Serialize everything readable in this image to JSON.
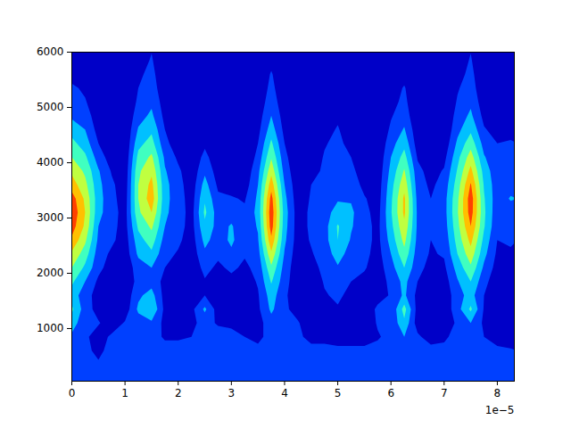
{
  "chart_data": {
    "type": "contour",
    "annotations": [
      "1e−5"
    ],
    "xlim": [
      0,
      8.32e-05
    ],
    "ylim": [
      48,
      6000
    ],
    "xticks": [
      0,
      {
        "value": 1e-05,
        "label": "1"
      },
      {
        "value": 2e-05,
        "label": "2"
      },
      {
        "value": 3e-05,
        "label": "3"
      },
      {
        "value": 4e-05,
        "label": "4"
      },
      {
        "value": 5e-05,
        "label": "5"
      },
      {
        "value": 6e-05,
        "label": "6"
      },
      {
        "value": 7e-05,
        "label": "7"
      },
      {
        "value": 8e-05,
        "label": "8"
      }
    ],
    "yticks": [
      1000,
      2000,
      3000,
      4000,
      5000,
      6000
    ],
    "levels": [
      0,
      1,
      2,
      3,
      4,
      5,
      6,
      7
    ],
    "colors": [
      "#0000c8",
      "#0040ff",
      "#00c0ff",
      "#40ffc0",
      "#c0ff40",
      "#ffc000",
      "#ff4000",
      "#c80000"
    ],
    "x": [
      0,
      2.5e-06,
      5e-06,
      7.5e-06,
      1e-05,
      1.25e-05,
      1.5e-05,
      1.75e-05,
      2e-05,
      2.25e-05,
      2.5e-05,
      2.75e-05,
      3e-05,
      3.25e-05,
      3.5e-05,
      3.75e-05,
      4e-05,
      4.25e-05,
      4.5e-05,
      4.75e-05,
      5e-05,
      5.25e-05,
      5.5e-05,
      5.75e-05,
      6e-05,
      6.25e-05,
      6.5e-05,
      6.75e-05,
      7e-05,
      7.25e-05,
      7.5e-05,
      7.75e-05,
      8e-05,
      8.25e-05
    ],
    "y": [
      100,
      350,
      600,
      850,
      1100,
      1350,
      1600,
      1850,
      2100,
      2350,
      2600,
      2850,
      3100,
      3350,
      3600,
      3850,
      4100,
      4350,
      4600,
      4850,
      5100,
      5350,
      5600,
      5850
    ],
    "z": [
      [
        1.5,
        1.1,
        1.5,
        1.8,
        2.5,
        3.2,
        2.5,
        3.2,
        4,
        4.8,
        5.8,
        6.5,
        6.8,
        6.5,
        5.5,
        4.8,
        4,
        3.3,
        2.6,
        1.8,
        1.4,
        1.2,
        0.6,
        0.3
      ],
      [
        1.5,
        1.1,
        1.2,
        1.2,
        1.3,
        1.5,
        1.5,
        2,
        2.8,
        3.5,
        4.2,
        4.8,
        5,
        4.8,
        4.3,
        3.8,
        3.2,
        2.5,
        2,
        1.5,
        1.1,
        0.8,
        0.3,
        0.2
      ],
      [
        1.5,
        1.1,
        0.8,
        0.5,
        1.1,
        0.6,
        0.5,
        0.8,
        1.3,
        1.5,
        1.8,
        2,
        2.3,
        2.4,
        2.3,
        2.1,
        1.5,
        1,
        0.6,
        0.4,
        0.2,
        0.1,
        0,
        0
      ],
      [
        1.5,
        1.1,
        1.3,
        1.2,
        0.4,
        0.3,
        0.3,
        0.3,
        0.5,
        0.8,
        1.2,
        1.3,
        1.4,
        1.3,
        1.2,
        0.9,
        0.5,
        0.3,
        0.2,
        0.1,
        0,
        0,
        0,
        0
      ],
      [
        1.5,
        1.1,
        1.3,
        1.4,
        1.1,
        0.4,
        0.3,
        0.3,
        0.3,
        0.4,
        0.5,
        0.6,
        0.6,
        0.5,
        0.4,
        0.3,
        0.2,
        0.1,
        0.1,
        0,
        0,
        0,
        0,
        0
      ],
      [
        1.5,
        1.1,
        1.2,
        1.2,
        1.5,
        2.2,
        1.8,
        1.3,
        1.5,
        2.2,
        2.6,
        3.2,
        3.8,
        4,
        4,
        3.8,
        3.3,
        2.7,
        2.1,
        1.6,
        1.2,
        1,
        0.8,
        0.5
      ],
      [
        1.5,
        1.1,
        1.3,
        1.3,
        1.8,
        3,
        2.4,
        1.6,
        2,
        2.8,
        3.5,
        4.2,
        5,
        5.6,
        5.3,
        4.8,
        4.2,
        3.4,
        2.8,
        2.2,
        1.8,
        1.5,
        1.3,
        1.1
      ],
      [
        1.5,
        1.1,
        1.3,
        0.9,
        0.7,
        0.7,
        0.6,
        0.7,
        1,
        1.3,
        1.6,
        2,
        2.2,
        2.3,
        2.3,
        2.1,
        1.8,
        1.3,
        1,
        0.7,
        0.5,
        0.3,
        0.2,
        0.1
      ],
      [
        1.5,
        1.1,
        1.3,
        0.9,
        0.3,
        0.2,
        0.2,
        0.3,
        0.6,
        0.9,
        1.2,
        1.4,
        1.5,
        1.5,
        1.4,
        1.2,
        0.8,
        0.4,
        0.2,
        0.1,
        0,
        0,
        0,
        0
      ],
      [
        1.5,
        1.1,
        1.4,
        1,
        0.8,
        0.7,
        0.3,
        0.2,
        0.3,
        0.4,
        0.5,
        0.6,
        0.6,
        0.5,
        0.4,
        0.3,
        0.2,
        0.1,
        0,
        0,
        0,
        0,
        0,
        0
      ],
      [
        1.5,
        1.1,
        1.5,
        1.2,
        1.3,
        2.2,
        1,
        0.9,
        1.3,
        1.8,
        2.3,
        2.8,
        3.2,
        2.9,
        2.4,
        1.8,
        1.3,
        0.8,
        0.4,
        0.2,
        0.1,
        0,
        0,
        0
      ],
      [
        1.5,
        1.1,
        1.5,
        1.4,
        0.9,
        0.5,
        0.4,
        0.5,
        0.8,
        1.2,
        1.5,
        1.6,
        1.5,
        1.2,
        0.8,
        0.5,
        0.3,
        0.1,
        0,
        0,
        0,
        0,
        0,
        0
      ],
      [
        1.5,
        1.1,
        1.5,
        1.3,
        0.8,
        0.5,
        0.4,
        0.7,
        1.2,
        1.8,
        2.2,
        2.1,
        1.6,
        1.1,
        0.6,
        0.3,
        0.1,
        0,
        0,
        0,
        0,
        0,
        0,
        0
      ],
      [
        1.5,
        1.1,
        1.4,
        1,
        0.4,
        0.3,
        0.3,
        0.5,
        0.8,
        1.1,
        1.3,
        1.3,
        1.2,
        0.9,
        0.5,
        0.3,
        0.1,
        0,
        0,
        0,
        0,
        0,
        0,
        0
      ],
      [
        1.5,
        1.1,
        1.2,
        0.8,
        0.6,
        0.8,
        0.9,
        1.1,
        1.3,
        1.6,
        1.9,
        2.1,
        2.3,
        2.2,
        2,
        1.7,
        1.3,
        1,
        0.7,
        0.5,
        0.3,
        0.2,
        0.1,
        0
      ],
      [
        1.5,
        1.1,
        1.2,
        1.3,
        1.6,
        2.2,
        2.5,
        3.1,
        3.8,
        4.8,
        5.8,
        6.5,
        6.7,
        6.4,
        5.6,
        4.7,
        3.9,
        3.2,
        2.5,
        2,
        1.6,
        1.3,
        1.1,
        0.7
      ],
      [
        1.5,
        1.1,
        1.2,
        1,
        1.1,
        1.2,
        1.2,
        1.4,
        1.6,
        1.9,
        2.2,
        2.4,
        2.5,
        2.3,
        2,
        1.6,
        1.3,
        1,
        0.7,
        0.5,
        0.3,
        0.2,
        0.1,
        0
      ],
      [
        1.5,
        1.1,
        1.2,
        1.2,
        1.1,
        0.6,
        0.3,
        0.3,
        0.3,
        0.4,
        0.5,
        0.5,
        0.5,
        0.4,
        0.3,
        0.2,
        0.1,
        0,
        0,
        0,
        0,
        0,
        0,
        0
      ],
      [
        1.5,
        1.1,
        1.3,
        0.7,
        0.3,
        0.2,
        0.2,
        0.3,
        0.6,
        0.9,
        1.1,
        1.2,
        1.2,
        1.1,
        1,
        0.6,
        0.3,
        0.1,
        0,
        0,
        0,
        0,
        0,
        0
      ],
      [
        1.5,
        1.1,
        1.3,
        0.7,
        0.5,
        0.6,
        0.9,
        1.1,
        1.3,
        1.5,
        1.6,
        1.6,
        1.6,
        1.5,
        1.4,
        1.2,
        1.1,
        0.9,
        0.6,
        0.3,
        0.1,
        0,
        0,
        0
      ],
      [
        1.5,
        1.1,
        1.2,
        0.6,
        0.6,
        0.9,
        1.2,
        1.5,
        1.9,
        2.4,
        3,
        3.1,
        2.4,
        1.9,
        1.7,
        1.6,
        1.5,
        1.3,
        1.1,
        0.8,
        0.4,
        0.1,
        0,
        0
      ],
      [
        1.5,
        1.1,
        1.2,
        0.6,
        0.4,
        0.5,
        0.7,
        1,
        1.3,
        1.6,
        1.9,
        2.1,
        2.2,
        1.9,
        1.6,
        1.3,
        1,
        0.6,
        0.3,
        0.1,
        0,
        0,
        0,
        0
      ],
      [
        1.5,
        1.1,
        1.2,
        0.6,
        0.3,
        0.3,
        0.4,
        0.7,
        1.1,
        1.3,
        1.4,
        1.4,
        1.3,
        1.1,
        0.7,
        0.4,
        0.2,
        0,
        0,
        0,
        0,
        0,
        0,
        0
      ],
      [
        1.5,
        1.1,
        1.3,
        0.9,
        1.1,
        1.2,
        0.6,
        0.4,
        0.5,
        0.6,
        0.7,
        0.7,
        0.6,
        0.5,
        0.4,
        0.3,
        0.2,
        0.1,
        0,
        0,
        0,
        0,
        0,
        0
      ],
      [
        1.5,
        1.1,
        1.3,
        1.3,
        1.2,
        1.1,
        1.1,
        1.3,
        1.6,
        2,
        2.4,
        2.7,
        2.9,
        2.8,
        2.6,
        2.3,
        2,
        1.6,
        1.2,
        0.9,
        0.6,
        0.4,
        0.2,
        0.1
      ],
      [
        1.5,
        1.2,
        1.6,
        2,
        2.8,
        3.4,
        2.2,
        2.3,
        3,
        3.7,
        4.3,
        4.8,
        5.2,
        5.2,
        4.7,
        4.1,
        3.4,
        2.7,
        2.1,
        1.6,
        1.3,
        1.1,
        0.6,
        0.3
      ],
      [
        1.5,
        1.2,
        1.8,
        1.2,
        0.5,
        0.6,
        0.7,
        1,
        1.3,
        1.5,
        1.7,
        1.8,
        1.8,
        1.7,
        1.5,
        1.3,
        0.9,
        0.5,
        0.3,
        0.1,
        0,
        0,
        0,
        0
      ],
      [
        1.5,
        1.1,
        1.4,
        0.5,
        0.2,
        0.2,
        0.2,
        0.4,
        0.7,
        0.9,
        1,
        1.1,
        1.1,
        1,
        0.8,
        0.6,
        0.3,
        0,
        0,
        0,
        0,
        0,
        0,
        0
      ],
      [
        1.5,
        1.1,
        1.3,
        0.8,
        0.3,
        0.3,
        0.3,
        0.5,
        0.8,
        1.1,
        1.3,
        1.5,
        1.6,
        1.6,
        1.4,
        1.1,
        0.7,
        0.3,
        0.1,
        0,
        0,
        0,
        0,
        0
      ],
      [
        1.5,
        1.1,
        1.5,
        1.4,
        1.2,
        1.6,
        1.6,
        1.9,
        2.4,
        3,
        3.4,
        3.7,
        3.9,
        3.8,
        3.5,
        3.1,
        2.7,
        2.2,
        1.7,
        1.4,
        1.1,
        0.9,
        0.6,
        0.4
      ],
      [
        1.5,
        1.1,
        1.5,
        1.5,
        2,
        3.2,
        2.4,
        3,
        3.8,
        4.6,
        5.3,
        6,
        6.5,
        6.6,
        6.1,
        5.3,
        4.5,
        3.6,
        2.8,
        2.2,
        1.8,
        1.5,
        1.3,
        1.1
      ],
      [
        1.5,
        1.1,
        1.3,
        1,
        0.8,
        0.9,
        1,
        1.3,
        1.8,
        2.3,
        2.7,
        3.1,
        3.2,
        3.1,
        2.9,
        2.6,
        2.1,
        1.6,
        1.1,
        0.7,
        0.4,
        0.2,
        0.1,
        0
      ],
      [
        1.5,
        1.1,
        1.2,
        0.6,
        0.3,
        0.2,
        0.2,
        0.4,
        0.6,
        0.8,
        1,
        1.2,
        1.3,
        1.4,
        1.4,
        1.3,
        1.2,
        1,
        0.6,
        0.3,
        0.1,
        0,
        0,
        0
      ],
      [
        1.5,
        1.1,
        1.1,
        0.5,
        0.2,
        0.2,
        0.2,
        0.4,
        0.7,
        0.9,
        1.1,
        1.3,
        1.5,
        2.1,
        1.6,
        1.3,
        1.2,
        1.1,
        0.7,
        0.3,
        0.1,
        0,
        0,
        0
      ]
    ]
  }
}
